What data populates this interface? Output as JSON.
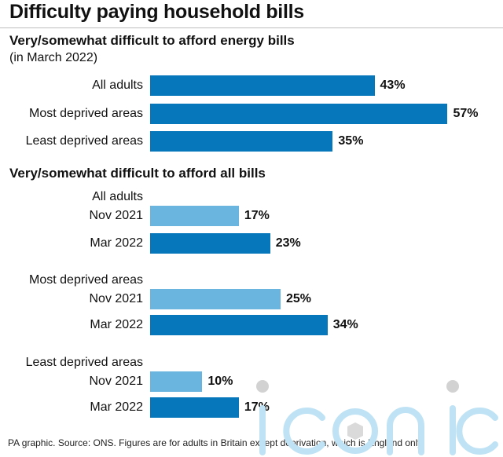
{
  "title": "Difficulty paying household bills",
  "colors": {
    "mar2022": "#0777bb",
    "nov2021": "#6ab5e0"
  },
  "chart_data": [
    {
      "type": "bar",
      "orientation": "horizontal",
      "title": "Very/somewhat difficult to afford energy bills",
      "subtitle": "(in March 2022)",
      "categories": [
        "All adults",
        "Most deprived areas",
        "Least deprived areas"
      ],
      "values": [
        43,
        57,
        35
      ],
      "value_labels": [
        "43%",
        "57%",
        "35%"
      ],
      "xlim": [
        0,
        60
      ]
    },
    {
      "type": "bar",
      "orientation": "horizontal",
      "title": "Very/somewhat difficult to afford all bills",
      "groups": [
        {
          "name": "All adults",
          "bars": [
            {
              "label": "Nov 2021",
              "value": 17,
              "value_label": "17%",
              "color": "nov2021"
            },
            {
              "label": "Mar 2022",
              "value": 23,
              "value_label": "23%",
              "color": "mar2022"
            }
          ]
        },
        {
          "name": "Most deprived areas",
          "bars": [
            {
              "label": "Nov 2021",
              "value": 25,
              "value_label": "25%",
              "color": "nov2021"
            },
            {
              "label": "Mar 2022",
              "value": 34,
              "value_label": "34%",
              "color": "mar2022"
            }
          ]
        },
        {
          "name": "Least deprived areas",
          "bars": [
            {
              "label": "Nov 2021",
              "value": 10,
              "value_label": "10%",
              "color": "nov2021"
            },
            {
              "label": "Mar 2022",
              "value": 17,
              "value_label": "17%",
              "color": "mar2022"
            }
          ]
        }
      ],
      "xlim": [
        0,
        60
      ]
    }
  ],
  "source": "PA graphic. Source: ONS. Figures are for adults in Britain except deprivation, which is England only",
  "watermark_text": "iconic"
}
